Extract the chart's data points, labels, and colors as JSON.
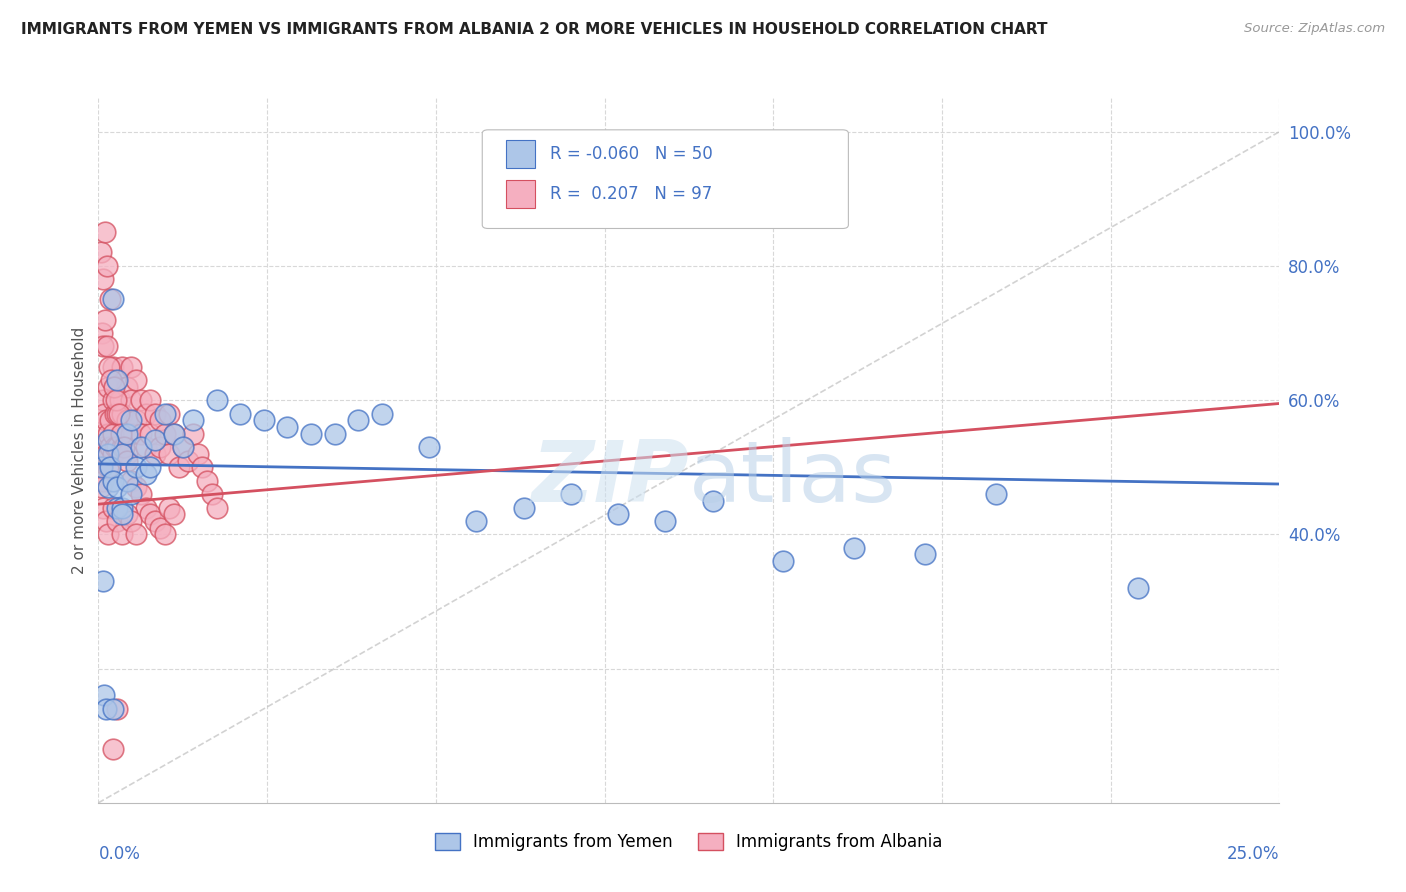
{
  "title": "IMMIGRANTS FROM YEMEN VS IMMIGRANTS FROM ALBANIA 2 OR MORE VEHICLES IN HOUSEHOLD CORRELATION CHART",
  "source": "Source: ZipAtlas.com",
  "ylabel": "2 or more Vehicles in Household",
  "legend_r_yemen": "-0.060",
  "legend_n_yemen": "50",
  "legend_r_albania": "0.207",
  "legend_n_albania": "97",
  "yemen_color": "#adc6e8",
  "albania_color": "#f5afc0",
  "yemen_line_color": "#4472c4",
  "albania_line_color": "#d45060",
  "ref_line_color": "#c0c0c0",
  "text_color": "#4472c4",
  "watermark_color": "#d8eaf5",
  "xmin": 0.0,
  "xmax": 0.25,
  "ymin": 0.0,
  "ymax": 1.05,
  "yemen_x": [
    0.0008,
    0.001,
    0.0012,
    0.0015,
    0.002,
    0.002,
    0.0025,
    0.003,
    0.003,
    0.004,
    0.004,
    0.005,
    0.005,
    0.006,
    0.006,
    0.007,
    0.008,
    0.009,
    0.01,
    0.011,
    0.012,
    0.014,
    0.016,
    0.018,
    0.02,
    0.025,
    0.03,
    0.035,
    0.04,
    0.045,
    0.05,
    0.055,
    0.06,
    0.07,
    0.08,
    0.09,
    0.1,
    0.11,
    0.12,
    0.13,
    0.145,
    0.16,
    0.175,
    0.19,
    0.22,
    0.002,
    0.003,
    0.004,
    0.005,
    0.007
  ],
  "yemen_y": [
    0.5,
    0.33,
    0.16,
    0.14,
    0.47,
    0.52,
    0.5,
    0.48,
    0.14,
    0.47,
    0.44,
    0.52,
    0.44,
    0.55,
    0.48,
    0.57,
    0.5,
    0.53,
    0.49,
    0.5,
    0.54,
    0.58,
    0.55,
    0.53,
    0.57,
    0.6,
    0.58,
    0.57,
    0.56,
    0.55,
    0.55,
    0.57,
    0.58,
    0.53,
    0.42,
    0.44,
    0.46,
    0.43,
    0.42,
    0.45,
    0.36,
    0.38,
    0.37,
    0.46,
    0.32,
    0.54,
    0.75,
    0.63,
    0.43,
    0.46
  ],
  "albania_x": [
    0.0005,
    0.0007,
    0.001,
    0.001,
    0.001,
    0.0012,
    0.0012,
    0.0015,
    0.0015,
    0.002,
    0.002,
    0.002,
    0.0025,
    0.0025,
    0.003,
    0.003,
    0.003,
    0.003,
    0.0035,
    0.0035,
    0.004,
    0.004,
    0.004,
    0.0045,
    0.005,
    0.005,
    0.005,
    0.006,
    0.006,
    0.006,
    0.007,
    0.007,
    0.007,
    0.008,
    0.008,
    0.009,
    0.009,
    0.01,
    0.01,
    0.011,
    0.011,
    0.012,
    0.012,
    0.013,
    0.013,
    0.014,
    0.015,
    0.015,
    0.016,
    0.017,
    0.018,
    0.019,
    0.02,
    0.021,
    0.022,
    0.023,
    0.024,
    0.025,
    0.0008,
    0.001,
    0.0013,
    0.0018,
    0.0022,
    0.0027,
    0.0032,
    0.0038,
    0.0043,
    0.0048,
    0.0055,
    0.006,
    0.007,
    0.008,
    0.009,
    0.01,
    0.011,
    0.012,
    0.013,
    0.014,
    0.015,
    0.016,
    0.0005,
    0.001,
    0.0015,
    0.002,
    0.003,
    0.004,
    0.005,
    0.006,
    0.007,
    0.008,
    0.0006,
    0.0009,
    0.0014,
    0.0019,
    0.0024,
    0.003,
    0.004
  ],
  "albania_y": [
    0.5,
    0.52,
    0.55,
    0.6,
    0.48,
    0.58,
    0.53,
    0.57,
    0.52,
    0.62,
    0.5,
    0.55,
    0.57,
    0.53,
    0.6,
    0.55,
    0.52,
    0.65,
    0.58,
    0.53,
    0.63,
    0.58,
    0.53,
    0.6,
    0.65,
    0.58,
    0.53,
    0.62,
    0.57,
    0.52,
    0.65,
    0.6,
    0.55,
    0.63,
    0.57,
    0.6,
    0.55,
    0.58,
    0.53,
    0.6,
    0.55,
    0.58,
    0.52,
    0.57,
    0.53,
    0.55,
    0.58,
    0.52,
    0.55,
    0.5,
    0.53,
    0.51,
    0.55,
    0.52,
    0.5,
    0.48,
    0.46,
    0.44,
    0.7,
    0.68,
    0.72,
    0.68,
    0.65,
    0.63,
    0.62,
    0.6,
    0.58,
    0.55,
    0.53,
    0.51,
    0.48,
    0.47,
    0.46,
    0.44,
    0.43,
    0.42,
    0.41,
    0.4,
    0.44,
    0.43,
    0.47,
    0.44,
    0.42,
    0.4,
    0.44,
    0.42,
    0.4,
    0.43,
    0.42,
    0.4,
    0.82,
    0.78,
    0.85,
    0.8,
    0.75,
    0.08,
    0.14
  ]
}
